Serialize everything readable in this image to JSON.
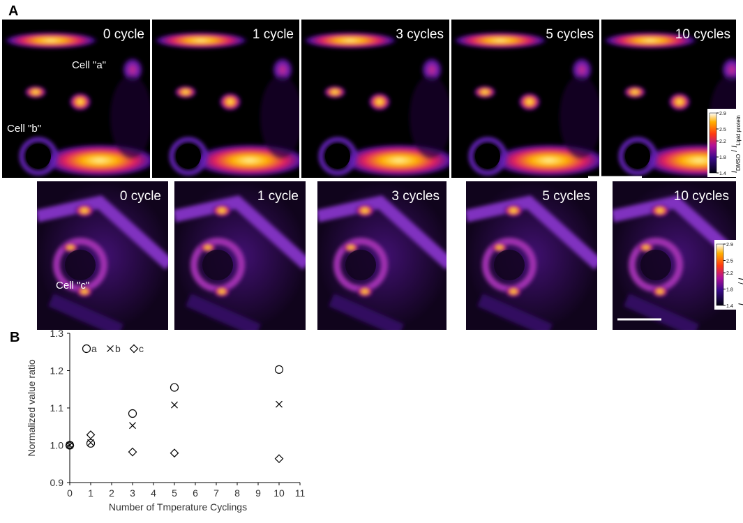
{
  "panel_a": {
    "label": "A",
    "top_row": [
      "0 cycle",
      "1 cycle",
      "3 cycles",
      "5 cycles",
      "10 cycles"
    ],
    "bottom_row": [
      "0 cycle",
      "1 cycle",
      "3 cycles",
      "5 cycles",
      "10 cycles"
    ],
    "cells": [
      "Cell \"a\"",
      "Cell \"b\"",
      "Cell \"c\""
    ],
    "colorbar": {
      "range": [
        1.4,
        2.9
      ],
      "ticks": [
        2.9,
        2.5,
        2.2,
        1.8,
        1.4
      ],
      "label": [
        "I",
        "DMSO",
        " / ",
        "I",
        "Lipid protein"
      ]
    }
  },
  "panel_b": {
    "label": "B"
  },
  "chart_data": {
    "type": "scatter",
    "x_label": "Number of Tmperature Cyclings",
    "y_label": "Normalized value ratio",
    "x": [
      0,
      1,
      3,
      5,
      10
    ],
    "series": [
      {
        "name": "a",
        "marker": "circle",
        "color": "#000000",
        "values": [
          1.0,
          1.005,
          1.085,
          1.155,
          1.203
        ]
      },
      {
        "name": "b",
        "marker": "cross",
        "color": "#000000",
        "values": [
          1.0,
          1.007,
          1.053,
          1.108,
          1.11
        ]
      },
      {
        "name": "c",
        "marker": "diamond",
        "color": "#000000",
        "values": [
          1.0,
          1.028,
          0.982,
          0.979,
          0.964
        ]
      }
    ],
    "xlim": [
      0,
      11
    ],
    "xticks": [
      0,
      1,
      2,
      3,
      4,
      5,
      6,
      7,
      8,
      9,
      10,
      11
    ],
    "ylim": [
      0.9,
      1.3
    ],
    "yticks": [
      0.9,
      {
        "value": 1.0,
        "label": "1.0"
      },
      1.1,
      1.2,
      1.3
    ],
    "grid": false,
    "legend": "top-left"
  }
}
